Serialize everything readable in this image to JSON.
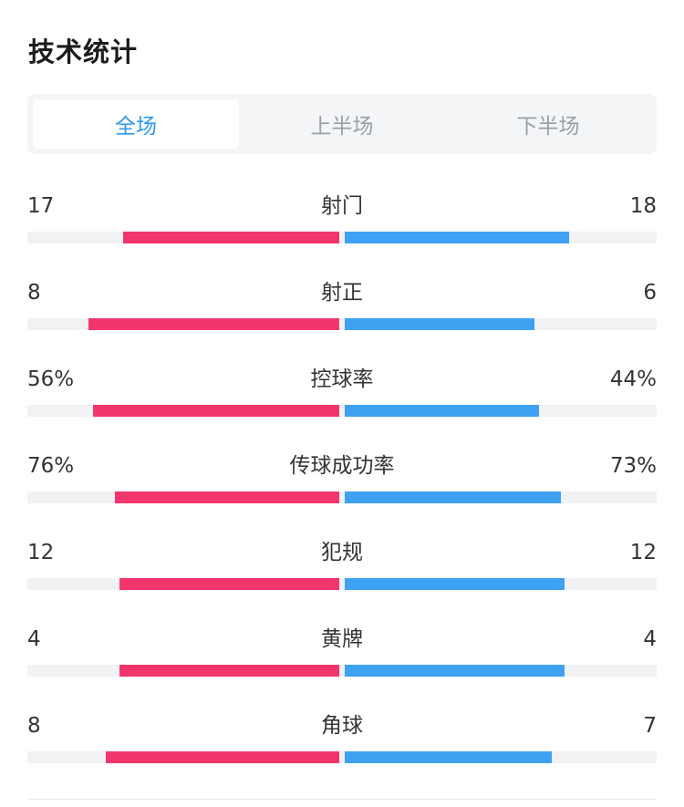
{
  "title": "技术统计",
  "tabs": [
    {
      "label": "全场",
      "active": true
    },
    {
      "label": "上半场",
      "active": false
    },
    {
      "label": "下半场",
      "active": false
    }
  ],
  "colors": {
    "home": "#f2356d",
    "away": "#3ea1f2",
    "accent": "#2e97ea",
    "track": "#f1f2f4"
  },
  "stats": [
    {
      "label": "射门",
      "left": "17",
      "right": "18",
      "left_fill": 0.49,
      "right_fill": 0.51
    },
    {
      "label": "射正",
      "left": "8",
      "right": "6",
      "left_fill": 0.57,
      "right_fill": 0.43
    },
    {
      "label": "控球率",
      "left": "56%",
      "right": "44%",
      "left_fill": 0.56,
      "right_fill": 0.44
    },
    {
      "label": "传球成功率",
      "left": "76%",
      "right": "73%",
      "left_fill": 0.51,
      "right_fill": 0.49
    },
    {
      "label": "犯规",
      "left": "12",
      "right": "12",
      "left_fill": 0.5,
      "right_fill": 0.5
    },
    {
      "label": "黄牌",
      "left": "4",
      "right": "4",
      "left_fill": 0.5,
      "right_fill": 0.5
    },
    {
      "label": "角球",
      "left": "8",
      "right": "7",
      "left_fill": 0.53,
      "right_fill": 0.47
    }
  ]
}
